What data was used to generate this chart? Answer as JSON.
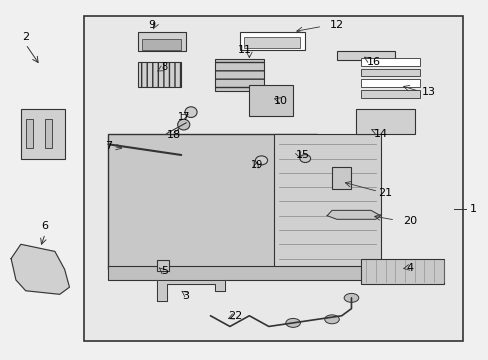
{
  "bg_color": "#f0f0f0",
  "box_bg": "#e8e8e8",
  "line_color": "#333333",
  "text_color": "#000000",
  "fig_width": 4.89,
  "fig_height": 3.6,
  "dpi": 100
}
